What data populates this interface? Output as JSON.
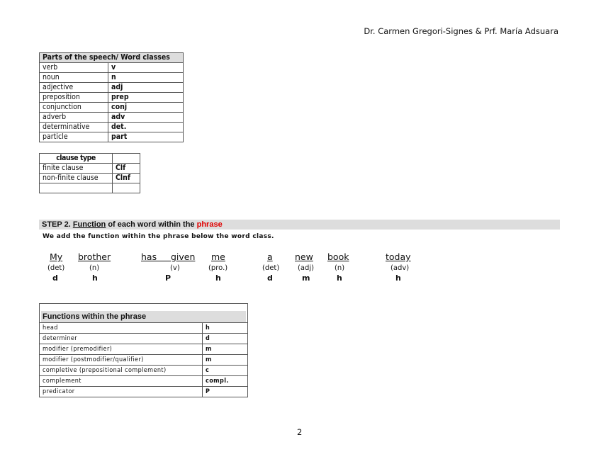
{
  "header": {
    "authors": "Dr. Carmen Gregori-Signes & Prf. María Adsuara"
  },
  "word_classes": {
    "title": "Parts of the speech/ Word classes",
    "rows": [
      [
        "verb",
        "v"
      ],
      [
        "noun",
        "n"
      ],
      [
        "adjective",
        "adj"
      ],
      [
        "preposition",
        "prep"
      ],
      [
        "conjunction",
        "conj"
      ],
      [
        "adverb",
        "adv"
      ],
      [
        "determinative",
        "det."
      ],
      [
        "particle",
        "part"
      ]
    ]
  },
  "clause_types": {
    "title": "clause type",
    "rows": [
      [
        "finite clause",
        "Clf"
      ],
      [
        "non-finite clause",
        "Clnf"
      ],
      [
        "",
        ""
      ]
    ]
  },
  "step2": {
    "prefix": "STEP 2. ",
    "function_word": "Function",
    "middle": " of each word within the ",
    "phrase_word": "phrase",
    "phrase_color": "#e00000",
    "description": "We add the function within the phrase below the word class."
  },
  "example": [
    {
      "word": "My",
      "cls": "(det)",
      "fn": "d"
    },
    {
      "word": "brother",
      "cls": "(n)",
      "fn": "h"
    },
    {
      "word": "has     given",
      "cls": "(v)",
      "fn": "P"
    },
    {
      "word": "me",
      "cls": "(pro.)",
      "fn": "h"
    },
    {
      "word": "a",
      "cls": "(det)",
      "fn": "d"
    },
    {
      "word": "new",
      "cls": "(adj)",
      "fn": "m"
    },
    {
      "word": "book",
      "cls": "(n)",
      "fn": "h"
    },
    {
      "word": "today",
      "cls": "(adv)",
      "fn": "h"
    }
  ],
  "functions": {
    "title": "Functions within the phrase",
    "rows": [
      [
        "head",
        "h"
      ],
      [
        "determiner",
        "d"
      ],
      [
        "modifier (premodifier)",
        "m"
      ],
      [
        "modifier (postmodifier/qualifier)",
        "m"
      ],
      [
        "completive (prepositional complement)",
        "c"
      ],
      [
        "complement",
        "compl."
      ],
      [
        "predicator",
        "P"
      ]
    ]
  },
  "footer": {
    "page_number": "2"
  }
}
